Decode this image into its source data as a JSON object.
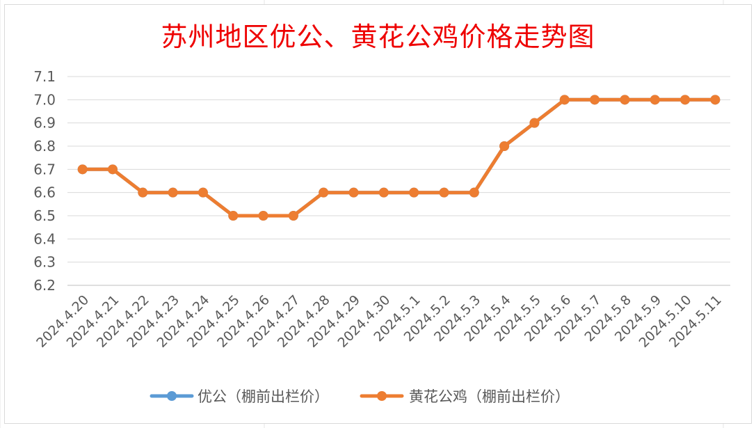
{
  "chart_data": {
    "type": "line",
    "title": "苏州地区优公、黄花公鸡价格走势图",
    "xlabel": "",
    "ylabel": "",
    "categories": [
      "2024.4.20",
      "2024.4.21",
      "2024.4.22",
      "2024.4.23",
      "2024.4.24",
      "2024.4.25",
      "2024.4.26",
      "2024.4.27",
      "2024.4.28",
      "2024.4.29",
      "2024.4.30",
      "2024.5.1",
      "2024.5.2",
      "2024.5.3",
      "2024.5.4",
      "2024.5.5",
      "2024.5.6",
      "2024.5.7",
      "2024.5.8",
      "2024.5.9",
      "2024.5.10",
      "2024.5.11"
    ],
    "series": [
      {
        "name": "优公（棚前出栏价）",
        "color": "#5b9bd5",
        "values": [
          6.7,
          6.7,
          6.6,
          6.6,
          6.6,
          6.5,
          6.5,
          6.5,
          6.6,
          6.6,
          6.6,
          6.6,
          6.6,
          6.6,
          6.8,
          6.9,
          7.0,
          7.0,
          7.0,
          7.0,
          7.0,
          7.0
        ]
      },
      {
        "name": "黄花公鸡（棚前出栏价）",
        "color": "#ed7d31",
        "values": [
          6.7,
          6.7,
          6.6,
          6.6,
          6.6,
          6.5,
          6.5,
          6.5,
          6.6,
          6.6,
          6.6,
          6.6,
          6.6,
          6.6,
          6.8,
          6.9,
          7.0,
          7.0,
          7.0,
          7.0,
          7.0,
          7.0
        ]
      }
    ],
    "yticks": [
      "6.2",
      "6.3",
      "6.4",
      "6.5",
      "6.6",
      "6.7",
      "6.8",
      "6.9",
      "7.0",
      "7.1"
    ],
    "ylim": [
      6.2,
      7.1
    ],
    "grid": true,
    "legend": "bottom"
  }
}
